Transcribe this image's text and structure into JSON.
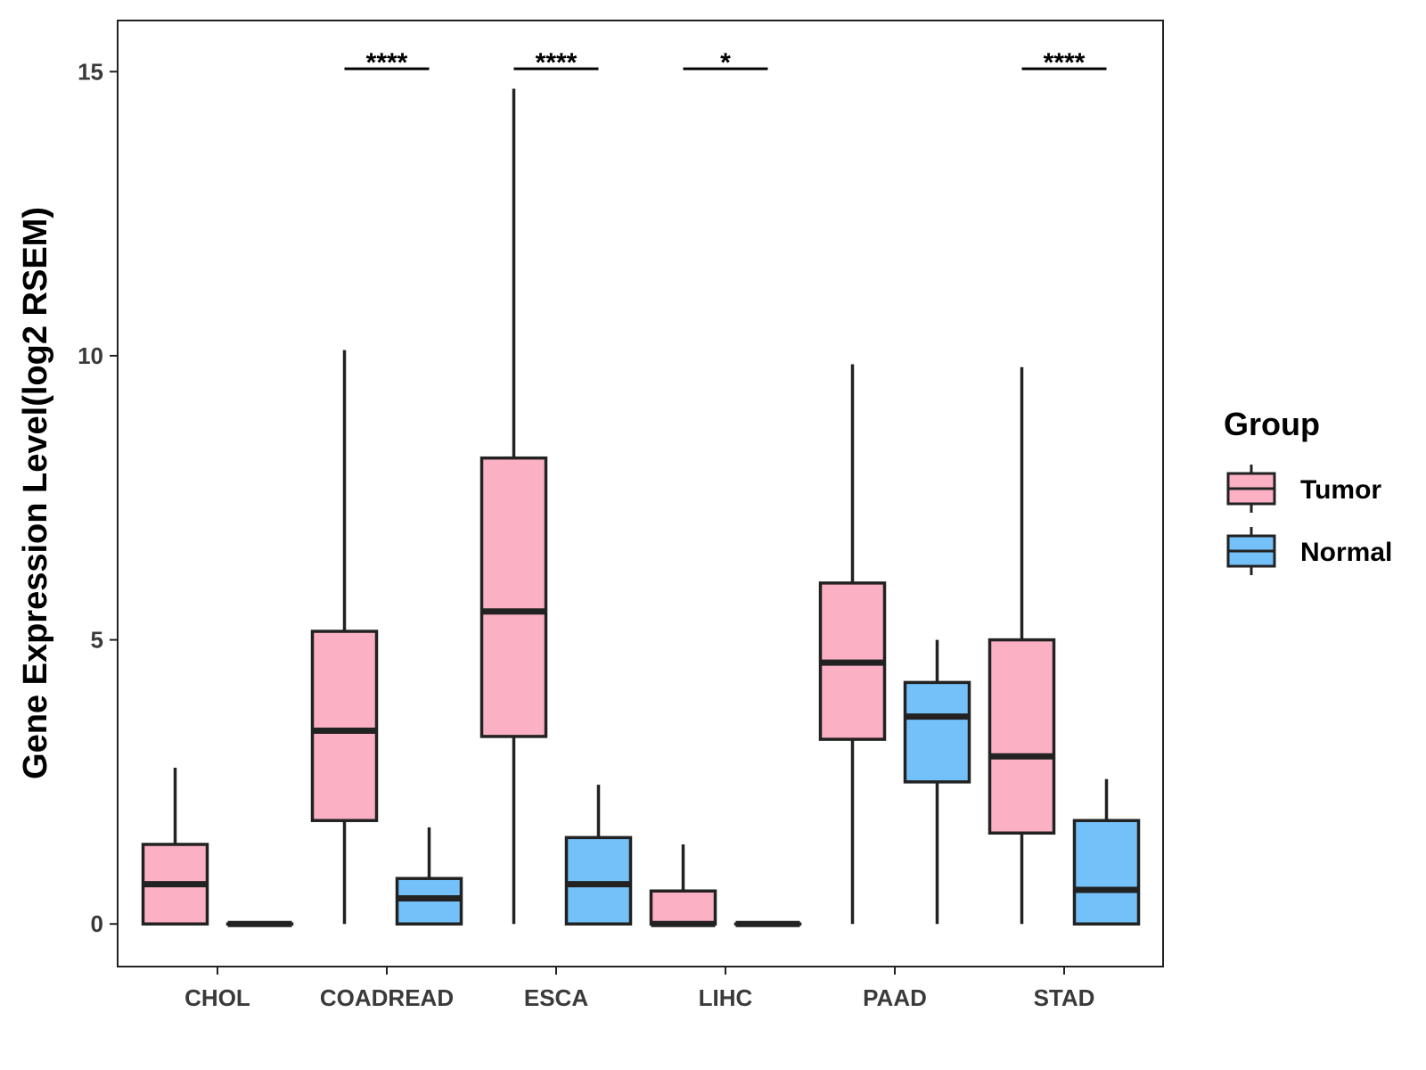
{
  "chart_data": {
    "type": "boxplot",
    "ylabel": "Gene Expression Level(log2 RSEM)",
    "xlabel": "",
    "ylim": [
      -0.75,
      15.9
    ],
    "yticks": [
      0,
      5,
      10,
      15
    ],
    "ytick_labels": [
      "0",
      "5",
      "10",
      "15"
    ],
    "grid": false,
    "legend": {
      "title": "Group",
      "position": "right",
      "entries": [
        {
          "name": "Tumor",
          "color": "#FBB1C3"
        },
        {
          "name": "Normal",
          "color": "#74C0F8"
        }
      ]
    },
    "colors": {
      "Tumor": "#FBB1C3",
      "Normal": "#74C0F8",
      "stroke": "#222222"
    },
    "categories": [
      "CHOL",
      "COADREAD",
      "ESCA",
      "LIHC",
      "PAAD",
      "STAD"
    ],
    "series": [
      {
        "name": "Tumor",
        "boxes": [
          {
            "min": 0,
            "q1": 0,
            "median": 0.7,
            "q3": 1.4,
            "max": 2.75
          },
          {
            "min": 0,
            "q1": 1.82,
            "median": 3.4,
            "q3": 5.15,
            "max": 10.1
          },
          {
            "min": 0,
            "q1": 3.3,
            "median": 5.5,
            "q3": 8.2,
            "max": 14.7
          },
          {
            "min": 0,
            "q1": 0,
            "median": 0,
            "q3": 0.58,
            "max": 1.4
          },
          {
            "min": 0,
            "q1": 3.25,
            "median": 4.6,
            "q3": 6.0,
            "max": 9.85
          },
          {
            "min": 0,
            "q1": 1.6,
            "median": 2.95,
            "q3": 5.0,
            "max": 9.8
          }
        ]
      },
      {
        "name": "Normal",
        "boxes": [
          {
            "min": 0,
            "q1": 0,
            "median": 0,
            "q3": 0,
            "max": 0
          },
          {
            "min": 0,
            "q1": 0,
            "median": 0.45,
            "q3": 0.8,
            "max": 1.7
          },
          {
            "min": 0,
            "q1": 0,
            "median": 0.7,
            "q3": 1.52,
            "max": 2.45
          },
          {
            "min": 0,
            "q1": 0,
            "median": 0,
            "q3": 0,
            "max": 0
          },
          {
            "min": 0,
            "q1": 2.5,
            "median": 3.65,
            "q3": 4.25,
            "max": 5.0
          },
          {
            "min": 0,
            "q1": 0,
            "median": 0.6,
            "q3": 1.82,
            "max": 2.55
          }
        ]
      }
    ],
    "significance": [
      {
        "category": "COADREAD",
        "label": "****",
        "y": 15.05
      },
      {
        "category": "ESCA",
        "label": "****",
        "y": 15.05
      },
      {
        "category": "LIHC",
        "label": "*",
        "y": 15.05
      },
      {
        "category": "STAD",
        "label": "****",
        "y": 15.05
      }
    ]
  }
}
